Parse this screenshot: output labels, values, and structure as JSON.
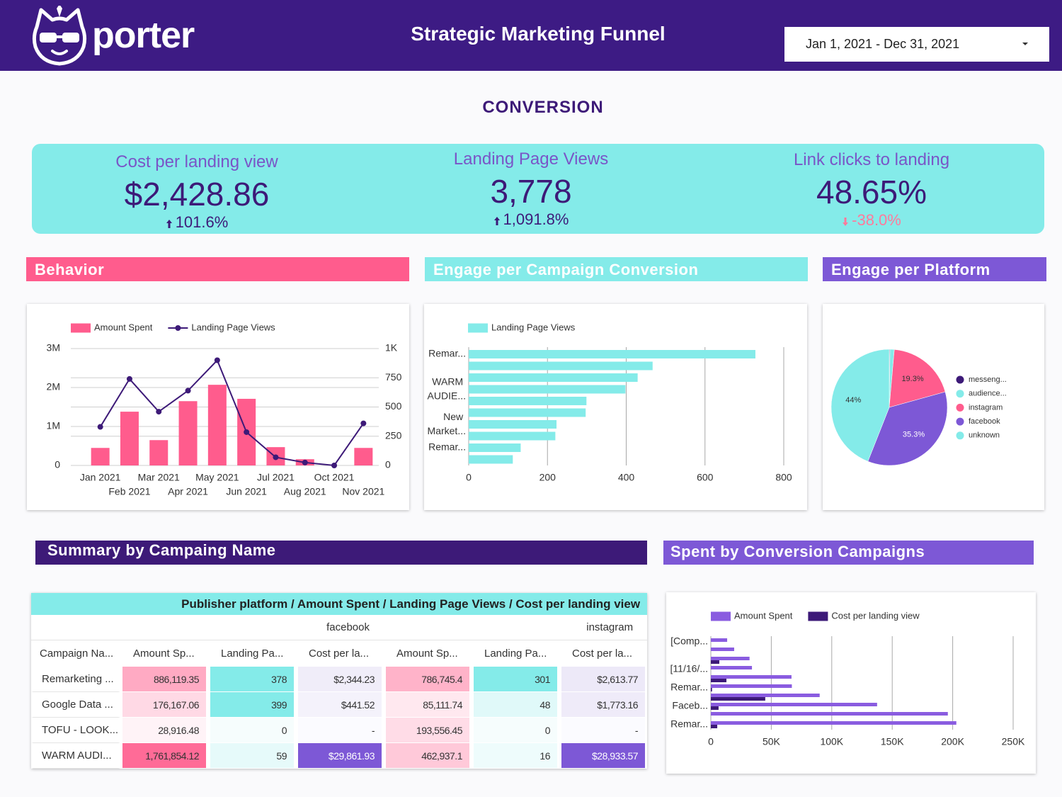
{
  "header": {
    "logo": "porter",
    "title": "Strategic Marketing Funnel",
    "date_range": "Jan 1, 2021 - Dec 31, 2021"
  },
  "section": "CONVERSION",
  "kpis": [
    {
      "label": "Cost per landing view",
      "value": "$2,428.86",
      "change": "101.6%"
    },
    {
      "label": "Landing Page Views",
      "value": "3,778",
      "change": "1,091.8%"
    },
    {
      "label": "Link clicks to landing",
      "value": "48.65%",
      "change": "-38.0%"
    }
  ],
  "table": {
    "title": "Summary by Campaing Name",
    "header": "Publisher platform / Amount Spent / Landing Page Views / Cost per landing view",
    "groups": [
      "facebook",
      "instagram"
    ],
    "columns": [
      "Campaign Na...",
      "Amount Sp...",
      "Landing Pa...",
      "Cost per la...",
      "Amount Sp...",
      "Landing Pa...",
      "Cost per la..."
    ],
    "rows": [
      [
        "Remarketing ...",
        "886,119.35",
        "378",
        "$2,344.23",
        "786,745.4",
        "301",
        "$2,613.77"
      ],
      [
        "Google Data ...",
        "176,167.06",
        "399",
        "$441.52",
        "85,111.74",
        "48",
        "$1,773.16"
      ],
      [
        "TOFU - LOOK...",
        "28,916.48",
        "0",
        "-",
        "193,556.45",
        "0",
        "-"
      ],
      [
        "WARM AUDI...",
        "1,761,854.12",
        "59",
        "$29,861.93",
        "462,937.1",
        "16",
        "$28,933.57"
      ]
    ]
  },
  "chart_data": [
    {
      "type": "combo",
      "title": "Behavior",
      "categories": [
        "Jan 2021",
        "Feb 2021",
        "Mar 2021",
        "Apr 2021",
        "May 2021",
        "Jun 2021",
        "Jul 2021",
        "Aug 2021",
        "Oct 2021",
        "Nov 2021"
      ],
      "series": [
        {
          "name": "Amount Spent",
          "mark": "bar",
          "color": "#ff5c8d",
          "values": [
            450000,
            1380000,
            650000,
            1650000,
            2070000,
            1710000,
            470000,
            160000,
            0,
            450000
          ]
        },
        {
          "name": "Landing Page Views",
          "mark": "line",
          "axis": "y2",
          "color": "#3d1a78",
          "values": [
            330,
            740,
            460,
            640,
            900,
            285,
            70,
            25,
            0,
            360
          ]
        }
      ],
      "ylim": [
        0,
        3000000
      ],
      "yticks": [
        0,
        {
          "value": 1000000,
          "label": "1M"
        },
        {
          "value": 2000000,
          "label": "2M"
        },
        {
          "value": 3000000,
          "label": "3M"
        }
      ],
      "y2lim": [
        0,
        1000
      ],
      "y2ticks": [
        0,
        250,
        500,
        750,
        {
          "value": 1000,
          "label": "1K"
        }
      ],
      "grid": true,
      "legend": "top"
    },
    {
      "type": "bar",
      "orientation": "horizontal",
      "title": "Engage per Campaign Conversion",
      "categories": [
        "Remar...",
        null,
        null,
        "WARM AUDIE...",
        null,
        null,
        "New Market...",
        null,
        "Remar...",
        null
      ],
      "series": [
        {
          "name": "Landing Page Views",
          "color": "#84ebe9",
          "values": [
            728,
            467,
            429,
            398,
            299,
            297,
            223,
            220,
            132,
            112
          ]
        }
      ],
      "xlim": [
        0,
        800
      ],
      "xticks": [
        0,
        200,
        400,
        600,
        800
      ],
      "grid": true,
      "legend": "top"
    },
    {
      "type": "pie",
      "title": "Engage per Platform",
      "categories": [
        "messeng...",
        "audience...",
        "instagram",
        "facebook",
        "unknown"
      ],
      "values": [
        0.2,
        1.2,
        19.3,
        35.3,
        44
      ],
      "value_labels": [
        null,
        null,
        "19.3%",
        "35.3%",
        "44%"
      ],
      "colors": [
        "#3d1a78",
        "#84ebe9",
        "#ff5c8d",
        "#7d58d6",
        "#84ebe9"
      ],
      "legend": "right"
    },
    {
      "type": "bar",
      "orientation": "horizontal",
      "title": "Spent by Conversion Campaigns",
      "categories": [
        "[Comp...",
        null,
        null,
        "[11/16/...",
        null,
        "Remar...",
        null,
        "Faceb...",
        null,
        "Remar..."
      ],
      "series": [
        {
          "name": "Amount Spent",
          "color": "#8a5ce0",
          "values": [
            13500,
            19300,
            32000,
            34000,
            66700,
            67000,
            90000,
            137500,
            196000,
            203000
          ]
        },
        {
          "name": "Cost per landing view",
          "color": "#3d1a78",
          "values": [
            0,
            0,
            7000,
            0,
            12900,
            1000,
            45000,
            6400,
            0,
            5300
          ]
        }
      ],
      "xlim": [
        0,
        250000
      ],
      "xticks": [
        0,
        {
          "value": 50000,
          "label": "50K"
        },
        {
          "value": 100000,
          "label": "100K"
        },
        {
          "value": 150000,
          "label": "150K"
        },
        {
          "value": 200000,
          "label": "200K"
        },
        {
          "value": 250000,
          "label": "250K"
        }
      ],
      "grid": true,
      "legend": "top"
    }
  ]
}
